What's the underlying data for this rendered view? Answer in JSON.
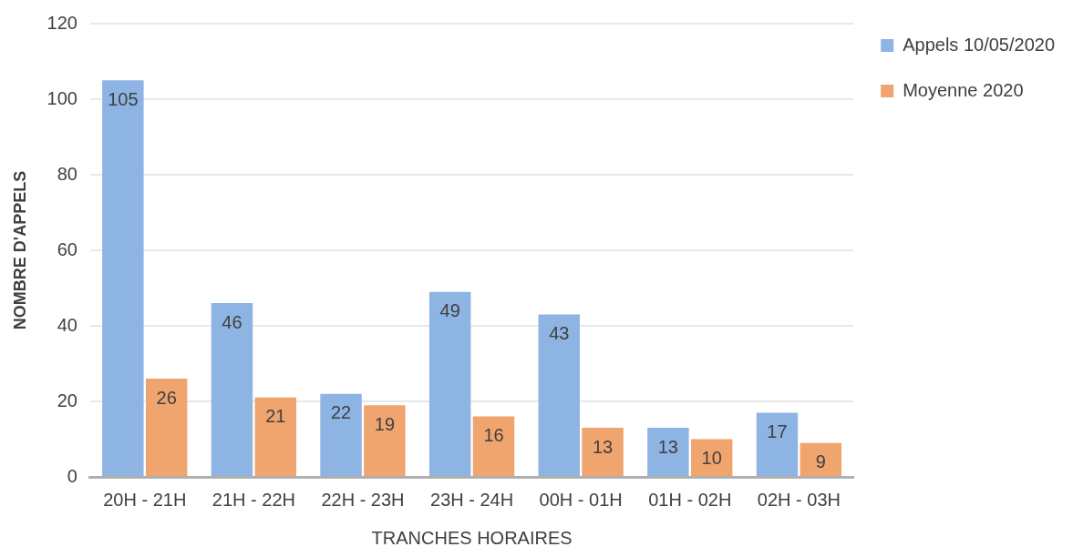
{
  "chart_data": {
    "type": "bar",
    "xlabel": "TRANCHES HORAIRES",
    "ylabel": "NOMBRE D'APPELS",
    "categories": [
      "20H - 21H",
      "21H - 22H",
      "22H - 23H",
      "23H - 24H",
      "00H - 01H",
      "01H - 02H",
      "02H - 03H"
    ],
    "series": [
      {
        "name": "Appels 10/05/2020",
        "color": "#8db4e2",
        "values": [
          105,
          46,
          22,
          49,
          43,
          13,
          17
        ]
      },
      {
        "name": "Moyenne 2020",
        "color": "#f0a46e",
        "values": [
          26,
          21,
          19,
          16,
          13,
          10,
          9
        ]
      }
    ],
    "ylim": [
      0,
      120
    ],
    "yticks": [
      0,
      20,
      40,
      60,
      80,
      100,
      120
    ],
    "grid": "y",
    "legend": "top right",
    "data_labels": true
  }
}
